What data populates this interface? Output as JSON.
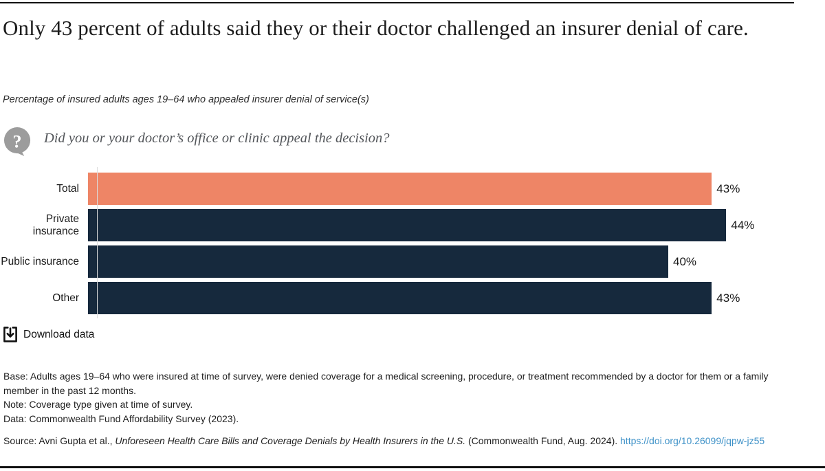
{
  "header": {
    "title": "Only 43 percent of adults said they or their doctor challenged an insurer denial of care.",
    "subtitle": "Percentage of insured adults ages 19–64 who appealed insurer denial of service(s)"
  },
  "question": {
    "icon": "question-bubble-icon",
    "text": "Did you or your doctor’s office or clinic appeal the decision?"
  },
  "chart_data": {
    "type": "bar",
    "orientation": "horizontal",
    "title": "Percentage of insured adults ages 19–64 who appealed insurer denial of service(s)",
    "categories": [
      "Total",
      "Private insurance",
      "Public insurance",
      "Other"
    ],
    "values": [
      43,
      44,
      40,
      43
    ],
    "value_labels": [
      "43%",
      "44%",
      "40%",
      "43%"
    ],
    "bar_colors": [
      "#ee8566",
      "#16293d",
      "#16293d",
      "#16293d"
    ],
    "xlabel": "",
    "ylabel": "",
    "xlim": [
      0,
      48.5
    ],
    "grid": false,
    "legend": false,
    "data_labels": "outside-end"
  },
  "download": {
    "label": "Download data"
  },
  "notes": [
    "Base: Adults ages 19–64 who were insured at time of survey, were denied coverage for a medical screening, procedure, or treatment recommended by a doctor for them or a family member in the past 12 months.",
    "Note: Coverage type given at time of survey.",
    "Data: Commonwealth Fund Affordability Survey (2023)."
  ],
  "source": {
    "prefix": "Source: Avni Gupta et al., ",
    "report_title": "Unforeseen Health Care Bills and Coverage Denials by Health Insurers in the U.S.",
    "suffix": " (Commonwealth Fund, Aug. 2024). ",
    "link": "https://doi.org/10.26099/jqpw-jz55"
  },
  "colors": {
    "accent_orange": "#ee8566",
    "navy": "#16293d",
    "link_blue": "#3f92c8",
    "icon_gray": "#9c9c9c",
    "question_text_gray": "#53565a",
    "axis_line": "#dcdcdc",
    "rule_black": "#111111"
  }
}
